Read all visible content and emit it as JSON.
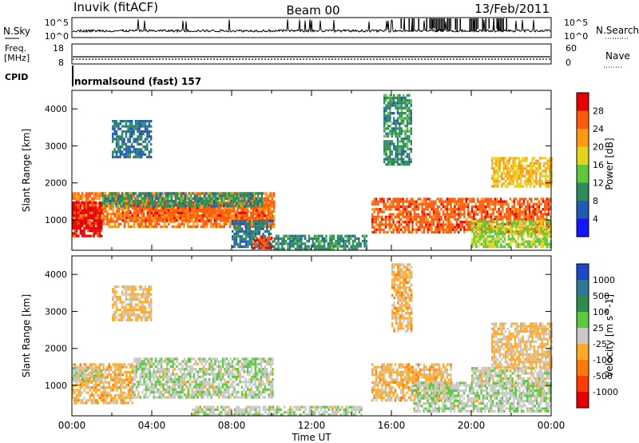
{
  "header": {
    "station": "Inuvik (fitACF)",
    "beam": "Beam 00",
    "date": "13/Feb/2011"
  },
  "summary": {
    "nsky_label": "N.Sky",
    "nsky_hi": "10^5",
    "nsky_lo": "10^0",
    "nsearch_label": "N.Search",
    "nsearch_hi": "10^5",
    "nsearch_lo": "10^0",
    "freq_label": "Freq.",
    "freq_unit": "[MHz]",
    "freq_hi": "18",
    "freq_lo": "8",
    "nave_label": "Nave",
    "nave_hi": "60",
    "nave_lo": "0",
    "cpid_label": "CPID",
    "cpid_value": "normalsound (fast) 157"
  },
  "axes": {
    "ylabel": "Slant Range [km]",
    "xlabel": "Time UT",
    "x_ticks": [
      "00:00",
      "04:00",
      "08:00",
      "12:00",
      "16:00",
      "20:00",
      "00:00"
    ],
    "y_ticks": [
      "1000",
      "2000",
      "3000",
      "4000"
    ]
  },
  "power_scale": {
    "label": "Power [dB]",
    "ticks": [
      "4",
      "8",
      "12",
      "16",
      "20",
      "24",
      "28"
    ],
    "colors": [
      "#1414ff",
      "#1f5ab4",
      "#2f8c5a",
      "#5ec83c",
      "#e6d21e",
      "#ff9914",
      "#ff5a0a",
      "#e60000"
    ]
  },
  "velocity_scale": {
    "label": "Velocity [m s^-1]",
    "ticks": [
      "1000",
      "500",
      "100",
      "25",
      "-25",
      "-100",
      "-500",
      "-1000"
    ],
    "colors": [
      "#1e46c8",
      "#2d7896",
      "#2e8a50",
      "#5ec83c",
      "#c8c8c8",
      "#ffaa28",
      "#ff780a",
      "#ff3c00",
      "#e60000"
    ]
  },
  "chart_data": [
    {
      "type": "heatmap",
      "title": "Power",
      "xlabel": "Time UT",
      "ylabel": "Slant Range [km]",
      "x_range_hours": [
        0,
        24
      ],
      "ylim": [
        180,
        4500
      ],
      "colorbar": "Power [dB]",
      "color_range": [
        0,
        32
      ],
      "regions": [
        {
          "t": [
            0,
            10.1
          ],
          "range": [
            800,
            1750
          ],
          "value": 24
        },
        {
          "t": [
            0,
            1.5
          ],
          "range": [
            550,
            1500
          ],
          "value": 30
        },
        {
          "t": [
            2.5,
            10.1
          ],
          "range": [
            1000,
            1500
          ],
          "value": 26
        },
        {
          "t": [
            1.5,
            9.5
          ],
          "range": [
            1400,
            1750
          ],
          "value": 10
        },
        {
          "t": [
            2,
            4
          ],
          "range": [
            2700,
            3700
          ],
          "value": 8
        },
        {
          "t": [
            8,
            10.1
          ],
          "range": [
            250,
            1000
          ],
          "value": 8
        },
        {
          "t": [
            9,
            10
          ],
          "range": [
            250,
            550
          ],
          "value": 28
        },
        {
          "t": [
            10.1,
            14.8
          ],
          "range": [
            250,
            600
          ],
          "value": 10
        },
        {
          "t": [
            15,
            24
          ],
          "range": [
            700,
            1600
          ],
          "value": 26
        },
        {
          "t": [
            15.6,
            17
          ],
          "range": [
            2500,
            4400
          ],
          "value": 10
        },
        {
          "t": [
            21,
            24
          ],
          "range": [
            1900,
            2700
          ],
          "value": 20
        },
        {
          "t": [
            20,
            24
          ],
          "range": [
            300,
            1000
          ],
          "value": 16
        }
      ]
    },
    {
      "type": "heatmap",
      "title": "Velocity",
      "xlabel": "Time UT",
      "ylabel": "Slant Range [km]",
      "x_range_hours": [
        0,
        24
      ],
      "ylim": [
        180,
        4500
      ],
      "colorbar": "Velocity [m s^-1]",
      "color_range": [
        -1000,
        1000
      ],
      "regions": [
        {
          "t": [
            0,
            3
          ],
          "range": [
            500,
            1600
          ],
          "value": -200
        },
        {
          "t": [
            0,
            1.5
          ],
          "range": [
            1100,
            1500
          ],
          "value": 0
        },
        {
          "t": [
            3,
            10.1
          ],
          "range": [
            700,
            1750
          ],
          "value": 50
        },
        {
          "t": [
            2,
            4
          ],
          "range": [
            2800,
            3700
          ],
          "value": -150
        },
        {
          "t": [
            6,
            14.5
          ],
          "range": [
            200,
            450
          ],
          "value": 40
        },
        {
          "t": [
            15,
            19
          ],
          "range": [
            600,
            1600
          ],
          "value": -200
        },
        {
          "t": [
            17,
            24
          ],
          "range": [
            300,
            1100
          ],
          "value": 60
        },
        {
          "t": [
            20,
            24
          ],
          "range": [
            1000,
            1500
          ],
          "value": 0
        },
        {
          "t": [
            21,
            24
          ],
          "range": [
            1500,
            2700
          ],
          "value": -150
        },
        {
          "t": [
            16,
            17
          ],
          "range": [
            2500,
            4300
          ],
          "value": -200
        }
      ]
    }
  ]
}
